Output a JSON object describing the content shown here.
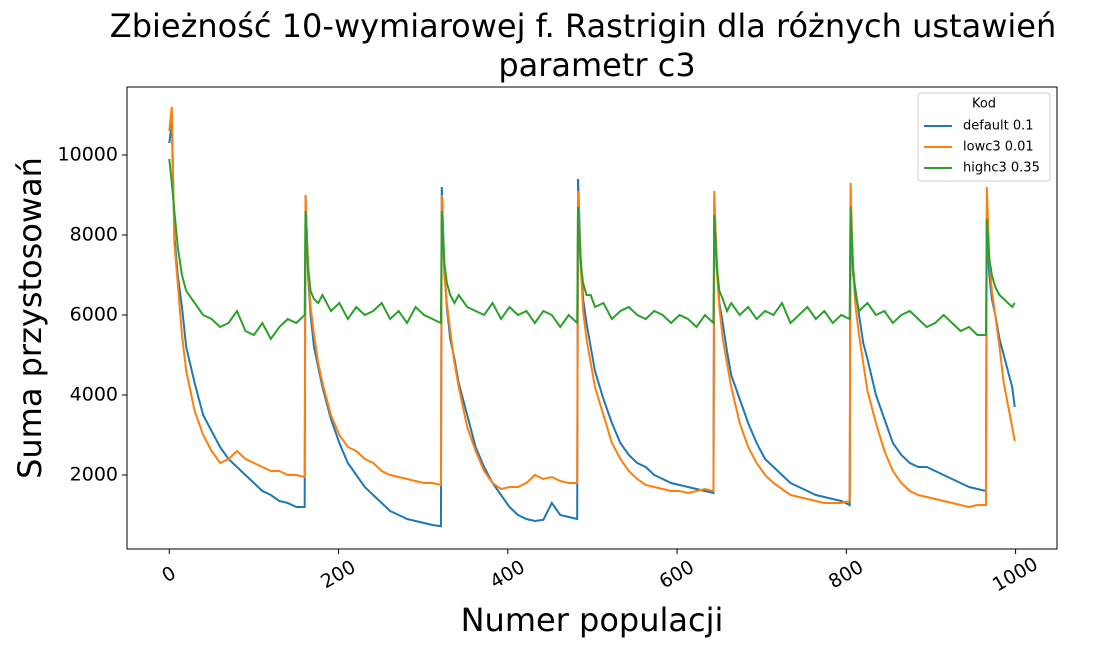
{
  "chart_data": {
    "type": "line",
    "title": [
      "Zbieżność 10-wymiarowej f. Rastrigin dla różnych ustawień",
      "parametr c3"
    ],
    "x_label": "Numer populacji",
    "y_label": "Suma przystosowań",
    "x": [
      0,
      3,
      6,
      10,
      15,
      20,
      30,
      40,
      50,
      60,
      70,
      80,
      90,
      100,
      110,
      120,
      130,
      140,
      150,
      160,
      161,
      164,
      167,
      171,
      176,
      181,
      191,
      201,
      211,
      221,
      231,
      241,
      251,
      261,
      271,
      281,
      291,
      301,
      311,
      321,
      322,
      325,
      328,
      332,
      337,
      342,
      352,
      362,
      372,
      382,
      392,
      402,
      412,
      422,
      432,
      442,
      452,
      462,
      472,
      482,
      483,
      486,
      489,
      493,
      498,
      503,
      513,
      523,
      533,
      543,
      553,
      563,
      573,
      583,
      593,
      603,
      613,
      623,
      633,
      643,
      644,
      647,
      650,
      654,
      659,
      664,
      674,
      684,
      694,
      704,
      714,
      724,
      734,
      744,
      754,
      764,
      774,
      784,
      794,
      804,
      805,
      808,
      811,
      815,
      820,
      825,
      835,
      845,
      855,
      865,
      875,
      885,
      895,
      905,
      915,
      925,
      935,
      945,
      955,
      965,
      966,
      969,
      972,
      976,
      981,
      986,
      996,
      999
    ],
    "series": [
      {
        "name": "default 0.1",
        "color": "#1f77b4",
        "values": [
          10300,
          10800,
          8000,
          7000,
          6200,
          5200,
          4300,
          3500,
          3100,
          2700,
          2400,
          2200,
          2000,
          1800,
          1600,
          1500,
          1350,
          1300,
          1200,
          1200,
          9000,
          7000,
          6000,
          5200,
          4700,
          4200,
          3400,
          2800,
          2300,
          2000,
          1700,
          1500,
          1300,
          1100,
          1000,
          900,
          850,
          800,
          750,
          720,
          9200,
          7200,
          6200,
          5400,
          4900,
          4300,
          3500,
          2700,
          2200,
          1800,
          1500,
          1200,
          1000,
          900,
          850,
          880,
          1300,
          1000,
          950,
          900,
          9400,
          7500,
          6400,
          5800,
          5200,
          4600,
          3900,
          3300,
          2800,
          2500,
          2300,
          2200,
          2000,
          1900,
          1800,
          1750,
          1700,
          1650,
          1600,
          1550,
          8900,
          7300,
          6300,
          5800,
          5100,
          4500,
          3900,
          3300,
          2800,
          2400,
          2200,
          2000,
          1800,
          1700,
          1600,
          1500,
          1450,
          1400,
          1350,
          1250,
          8700,
          7000,
          6600,
          6000,
          5300,
          4900,
          4000,
          3400,
          2800,
          2500,
          2300,
          2200,
          2200,
          2100,
          2000,
          1900,
          1800,
          1700,
          1650,
          1600,
          8400,
          7000,
          6400,
          6000,
          5400,
          5000,
          4200,
          3700
        ]
      },
      {
        "name": "lowc3 0.01",
        "color": "#ff7f0e",
        "values": [
          10600,
          11200,
          7800,
          6800,
          5500,
          4600,
          3600,
          3000,
          2600,
          2300,
          2400,
          2600,
          2400,
          2300,
          2200,
          2100,
          2100,
          2000,
          2000,
          1950,
          9000,
          7200,
          6200,
          5500,
          4800,
          4300,
          3500,
          3000,
          2700,
          2600,
          2400,
          2300,
          2100,
          2000,
          1950,
          1900,
          1850,
          1800,
          1800,
          1750,
          9000,
          7000,
          6300,
          5600,
          4800,
          4200,
          3200,
          2600,
          2100,
          1800,
          1650,
          1700,
          1700,
          1800,
          2000,
          1900,
          1950,
          1850,
          1800,
          1800,
          9100,
          7300,
          6100,
          5400,
          4800,
          4200,
          3500,
          2800,
          2400,
          2100,
          1900,
          1750,
          1700,
          1650,
          1600,
          1600,
          1550,
          1600,
          1650,
          1600,
          9100,
          7100,
          6200,
          5400,
          4800,
          4200,
          3300,
          2700,
          2300,
          2000,
          1800,
          1650,
          1500,
          1450,
          1400,
          1350,
          1300,
          1300,
          1300,
          1350,
          9300,
          7100,
          6200,
          5500,
          4800,
          4100,
          3300,
          2600,
          2100,
          1800,
          1600,
          1500,
          1450,
          1400,
          1350,
          1300,
          1250,
          1200,
          1250,
          1250,
          9200,
          7400,
          6600,
          6000,
          5200,
          4300,
          3200,
          2850
        ]
      },
      {
        "name": "highc3 0.35",
        "color": "#2ca02c",
        "values": [
          9900,
          9300,
          8600,
          7700,
          7000,
          6600,
          6300,
          6000,
          5900,
          5700,
          5800,
          6100,
          5600,
          5500,
          5800,
          5400,
          5700,
          5900,
          5800,
          6000,
          8600,
          7200,
          6600,
          6400,
          6300,
          6500,
          6100,
          6300,
          5900,
          6200,
          6000,
          6100,
          6300,
          5900,
          6100,
          5800,
          6200,
          6000,
          5900,
          5800,
          8600,
          7300,
          6800,
          6500,
          6300,
          6500,
          6200,
          6100,
          6000,
          6300,
          5900,
          6200,
          6000,
          6100,
          5800,
          6100,
          6000,
          5700,
          6000,
          5800,
          8700,
          7300,
          6800,
          6500,
          6500,
          6200,
          6300,
          5900,
          6100,
          6200,
          6000,
          5900,
          6100,
          6000,
          5800,
          6000,
          5900,
          5700,
          6000,
          5800,
          8500,
          7200,
          6600,
          6400,
          6100,
          6300,
          6000,
          6200,
          5900,
          6100,
          6000,
          6300,
          5800,
          6000,
          6200,
          5900,
          6100,
          5800,
          6000,
          5900,
          8700,
          7200,
          6500,
          6100,
          6200,
          6300,
          6000,
          6100,
          5800,
          6000,
          6100,
          5900,
          5700,
          5800,
          6000,
          5800,
          5600,
          5700,
          5500,
          5500,
          8400,
          7400,
          7000,
          6700,
          6500,
          6400,
          6200,
          6300
        ]
      }
    ],
    "xlim": [
      -49.95,
      1048.95
    ],
    "ylim": [
      150,
      11700
    ],
    "xticks": [
      0,
      200,
      400,
      600,
      800,
      1000
    ],
    "yticks": [
      2000,
      4000,
      6000,
      8000,
      10000
    ],
    "legend_title": "Kod",
    "legend_position": "upper right"
  }
}
